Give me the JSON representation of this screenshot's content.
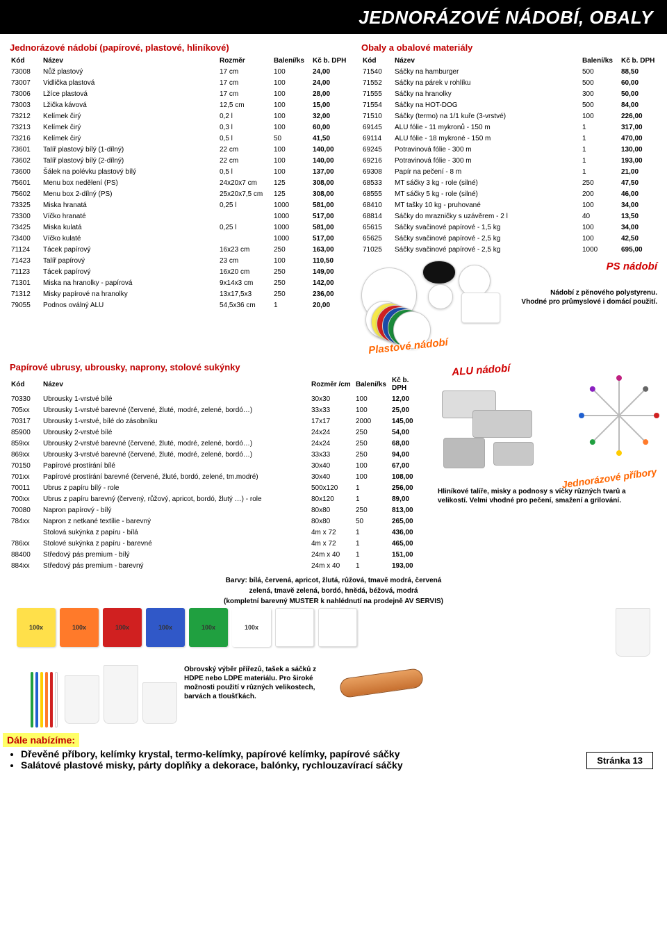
{
  "header": {
    "title": "JEDNORÁZOVÉ NÁDOBÍ, OBALY"
  },
  "table1": {
    "title": "Jednorázové nádobí (papírové, plastové, hliníkové)",
    "headers": {
      "kod": "Kód",
      "nazev": "Název",
      "rozm": "Rozměr",
      "bal": "Balení/ks",
      "kc": "Kč b. DPH"
    },
    "rows": [
      {
        "kod": "73008",
        "nazev": "Nůž plastový",
        "rozm": "17 cm",
        "bal": "100",
        "kc": "24,00"
      },
      {
        "kod": "73007",
        "nazev": "Vidlička plastová",
        "rozm": "17 cm",
        "bal": "100",
        "kc": "24,00"
      },
      {
        "kod": "73006",
        "nazev": "Lžíce plastová",
        "rozm": "17 cm",
        "bal": "100",
        "kc": "28,00"
      },
      {
        "kod": "73003",
        "nazev": "Lžička kávová",
        "rozm": "12,5 cm",
        "bal": "100",
        "kc": "15,00"
      },
      {
        "kod": "73212",
        "nazev": "Kelímek čirý",
        "rozm": "0,2 l",
        "bal": "100",
        "kc": "32,00"
      },
      {
        "kod": "73213",
        "nazev": "Kelímek čirý",
        "rozm": "0,3 l",
        "bal": "100",
        "kc": "60,00"
      },
      {
        "kod": "73216",
        "nazev": "Kelímek čirý",
        "rozm": "0,5 l",
        "bal": "50",
        "kc": "41,50"
      },
      {
        "kod": "73601",
        "nazev": "Talíř plastový bílý (1-dílný)",
        "rozm": "22 cm",
        "bal": "100",
        "kc": "140,00"
      },
      {
        "kod": "73602",
        "nazev": "Talíř plastový bílý (2-dílný)",
        "rozm": "22 cm",
        "bal": "100",
        "kc": "140,00"
      },
      {
        "kod": "73600",
        "nazev": "Šálek na polévku plastový bílý",
        "rozm": "0,5 l",
        "bal": "100",
        "kc": "137,00"
      },
      {
        "kod": "75601",
        "nazev": "Menu box nedělení (PS)",
        "rozm": "24x20x7 cm",
        "bal": "125",
        "kc": "308,00"
      },
      {
        "kod": "75602",
        "nazev": "Menu box 2-dílný (PS)",
        "rozm": "25x20x7,5 cm",
        "bal": "125",
        "kc": "308,00"
      },
      {
        "kod": "73325",
        "nazev": "Miska hranatá",
        "rozm": "0,25 l",
        "bal": "1000",
        "kc": "581,00"
      },
      {
        "kod": "73300",
        "nazev": "Víčko hranaté",
        "rozm": "",
        "bal": "1000",
        "kc": "517,00"
      },
      {
        "kod": "73425",
        "nazev": "Miska kulatá",
        "rozm": "0,25 l",
        "bal": "1000",
        "kc": "581,00"
      },
      {
        "kod": "73400",
        "nazev": "Víčko kulaté",
        "rozm": "",
        "bal": "1000",
        "kc": "517,00"
      },
      {
        "kod": "71124",
        "nazev": "Tácek papírový",
        "rozm": "16x23 cm",
        "bal": "250",
        "kc": "163,00"
      },
      {
        "kod": "71423",
        "nazev": "Talíř papírový",
        "rozm": "23 cm",
        "bal": "100",
        "kc": "110,50"
      },
      {
        "kod": "71123",
        "nazev": "Tácek papírový",
        "rozm": "16x20 cm",
        "bal": "250",
        "kc": "149,00"
      },
      {
        "kod": "71301",
        "nazev": "Miska na hranolky - papírová",
        "rozm": "9x14x3 cm",
        "bal": "250",
        "kc": "142,00"
      },
      {
        "kod": "71312",
        "nazev": "Misky papírové na hranolky",
        "rozm": "13x17,5x3",
        "bal": "250",
        "kc": "236,00"
      },
      {
        "kod": "79055",
        "nazev": "Podnos oválný ALU",
        "rozm": "54,5x36 cm",
        "bal": "1",
        "kc": "20,00"
      }
    ]
  },
  "table2": {
    "title": "Obaly a obalové materiály",
    "headers": {
      "kod": "Kód",
      "nazev": "Název",
      "bal": "Balení/ks",
      "kc": "Kč b. DPH"
    },
    "rows": [
      {
        "kod": "71540",
        "nazev": "Sáčky na hamburger",
        "bal": "500",
        "kc": "88,50"
      },
      {
        "kod": "71552",
        "nazev": "Sáčky na párek v rohlíku",
        "bal": "500",
        "kc": "60,00"
      },
      {
        "kod": "71555",
        "nazev": "Sáčky na hranolky",
        "bal": "300",
        "kc": "50,00"
      },
      {
        "kod": "71554",
        "nazev": "Sáčky na HOT-DOG",
        "bal": "500",
        "kc": "84,00"
      },
      {
        "kod": "71510",
        "nazev": "Sáčky (termo) na 1/1 kuře (3-vrstvé)",
        "bal": "100",
        "kc": "226,00"
      },
      {
        "kod": "69145",
        "nazev": "ALU fólie - 11 mykronů - 150 m",
        "bal": "1",
        "kc": "317,00"
      },
      {
        "kod": "69114",
        "nazev": "ALU fólie - 18 mykroné - 150 m",
        "bal": "1",
        "kc": "470,00"
      },
      {
        "kod": "69245",
        "nazev": "Potravinová fólie - 300 m",
        "bal": "1",
        "kc": "130,00"
      },
      {
        "kod": "69216",
        "nazev": "Potravinová fólie - 300 m",
        "bal": "1",
        "kc": "193,00"
      },
      {
        "kod": "69308",
        "nazev": "Papír na pečení - 8 m",
        "bal": "1",
        "kc": "21,00"
      },
      {
        "kod": "68533",
        "nazev": "MT sáčky 3 kg - role (silné)",
        "bal": "250",
        "kc": "47,50"
      },
      {
        "kod": "68555",
        "nazev": "MT sáčky 5 kg - role (silné)",
        "bal": "200",
        "kc": "46,00"
      },
      {
        "kod": "68410",
        "nazev": "MT tašky 10 kg - pruhované",
        "bal": "100",
        "kc": "34,00"
      },
      {
        "kod": "68814",
        "nazev": "Sáčky do mrazničky s uzávěrem - 2 l",
        "bal": "40",
        "kc": "13,50"
      },
      {
        "kod": "65615",
        "nazev": "Sáčky svačinové papírové - 1,5 kg",
        "bal": "100",
        "kc": "34,00"
      },
      {
        "kod": "65625",
        "nazev": "Sáčky svačinové papírové - 2,5 kg",
        "bal": "100",
        "kc": "42,50"
      },
      {
        "kod": "71025",
        "nazev": "Sáčky svačinové papírové - 2,5 kg",
        "bal": "1000",
        "kc": "695,00"
      }
    ]
  },
  "table3": {
    "title": "Papírové ubrusy, ubrousky, naprony, stolové sukýnky",
    "headers": {
      "kod": "Kód",
      "nazev": "Název",
      "rozm": "Rozměr /cm",
      "bal": "Balení/ks",
      "kc": "Kč b. DPH"
    },
    "rows": [
      {
        "kod": "70330",
        "nazev": "Ubrousky 1-vrstvé bílé",
        "rozm": "30x30",
        "bal": "100",
        "kc": "12,00"
      },
      {
        "kod": "705xx",
        "nazev": "Ubrousky 1-vrstvé barevné (červené, žluté, modré, zelené, bordó…)",
        "rozm": "33x33",
        "bal": "100",
        "kc": "25,00"
      },
      {
        "kod": "70317",
        "nazev": "Ubrousky 1-vrstvé, bílé do zásobníku",
        "rozm": "17x17",
        "bal": "2000",
        "kc": "145,00"
      },
      {
        "kod": "85900",
        "nazev": "Ubrousky 2-vrstvé bílé",
        "rozm": "24x24",
        "bal": "250",
        "kc": "54,00"
      },
      {
        "kod": "859xx",
        "nazev": "Ubrousky 2-vrstvé barevné (červené, žluté, modré, zelené, bordó…)",
        "rozm": "24x24",
        "bal": "250",
        "kc": "68,00"
      },
      {
        "kod": "869xx",
        "nazev": "Ubrousky 3-vrstvé barevné (červené, žluté, modré, zelené, bordó…)",
        "rozm": "33x33",
        "bal": "250",
        "kc": "94,00"
      },
      {
        "kod": "70150",
        "nazev": "Papírové prostírání bílé",
        "rozm": "30x40",
        "bal": "100",
        "kc": "67,00"
      },
      {
        "kod": "701xx",
        "nazev": "Papírové prostírání barevné (červené, žluté, bordó, zelené, tm.modré)",
        "rozm": "30x40",
        "bal": "100",
        "kc": "108,00"
      },
      {
        "kod": "70011",
        "nazev": "Ubrus z papíru bílý - role",
        "rozm": "500x120",
        "bal": "1",
        "kc": "256,00"
      },
      {
        "kod": "700xx",
        "nazev": "Ubrus z papíru barevný (červený, růžový, apricot, bordó, žlutý …) - role",
        "rozm": "80x120",
        "bal": "1",
        "kc": "89,00"
      },
      {
        "kod": "70080",
        "nazev": "Napron papírový - bílý",
        "rozm": "80x80",
        "bal": "250",
        "kc": "813,00"
      },
      {
        "kod": "784xx",
        "nazev": "Napron z netkané textílie - barevný",
        "rozm": "80x80",
        "bal": "50",
        "kc": "265,00"
      },
      {
        "kod": "",
        "nazev": "Stolová sukýnka z papíru - bílá",
        "rozm": "4m x 72",
        "bal": "1",
        "kc": "436,00"
      },
      {
        "kod": "786xx",
        "nazev": "Stolové sukýnka z papíru - barevné",
        "rozm": "4m x 72",
        "bal": "1",
        "kc": "465,00"
      },
      {
        "kod": "88400",
        "nazev": "Středový pás premium - bílý",
        "rozm": "24m x 40",
        "bal": "1",
        "kc": "151,00"
      },
      {
        "kod": "884xx",
        "nazev": "Středový pás premium - barevný",
        "rozm": "24m x 40",
        "bal": "1",
        "kc": "193,00"
      }
    ]
  },
  "labels": {
    "plast": "Plastové nádobí",
    "ps": "PS nádobí",
    "alu": "ALU nádobí",
    "pribory": "Jednorázové příbory",
    "ps_caption1": "Nádobí z pěnového polystyrenu.",
    "ps_caption2": "Vhodné pro průmyslové i domácí použití.",
    "alu_caption": "Hliníkové talíře, misky a podnosy s víčky různých tvarů a velikostí. Velmi vhodné pro pečení, smažení a grilování.",
    "hdpe_caption": "Obrovský výběr přířezů, tašek a sáčků z HDPE nebo LDPE materiálu. Pro široké možnosti použití v různých velikostech, barvách a tloušťkách."
  },
  "colornote": {
    "l1": "Barvy: bílá, červená, apricot, žlutá, růžová, tmavě modrá, červená",
    "l2": "zelená, tmavě zelená, bordó, hnědá, béžová, modrá",
    "l3": "(kompletní barevný MUSTER k nahlédnutí na prodejně AV SERVIS)"
  },
  "napkins": {
    "label": "100x",
    "colors": [
      "#ffe04a",
      "#ff7a2a",
      "#d02020",
      "#3058c8",
      "#20a040",
      "#ffffff"
    ]
  },
  "straws": [
    "#20a040",
    "#2060d0",
    "#ffcc00",
    "#ff7a2a",
    "#d02020",
    "#ffffff"
  ],
  "footer": {
    "dale": "Dále nabízíme:",
    "b1": "Dřevěné příbory, kelímky krystal, termo-kelímky, papírové kelímky, papírové sáčky",
    "b2": "Salátové plastové misky, párty doplňky a dekorace, balónky, rychlouzavírací sáčky",
    "page": "Stránka 13"
  },
  "plate_colors": [
    "#ffffff",
    "#f5e84a",
    "#d02020",
    "#1a4aa8",
    "#1a8a3a",
    "#ffffff"
  ],
  "spoke_colors": [
    "#d02020",
    "#ff7a2a",
    "#ffcc00",
    "#20a040",
    "#2060d0",
    "#8a20c0",
    "#c02080",
    "#666666"
  ]
}
